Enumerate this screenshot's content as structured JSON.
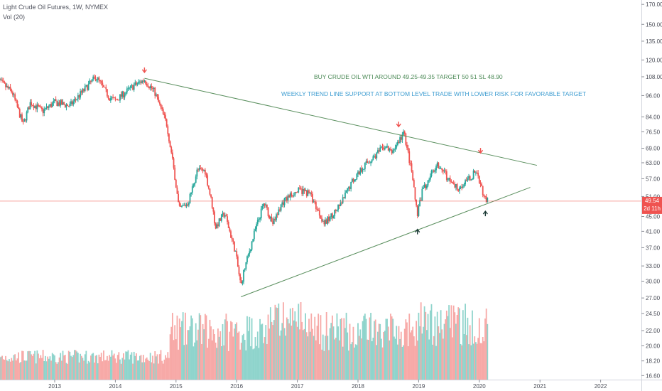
{
  "header": {
    "symbol_line": "Light Crude Oil Futures, 1W, NYMEX",
    "volume_line": "Vol (20)"
  },
  "annotations": {
    "line1": "BUY CRUDE OIL WTI AROUND 49.25-49.35 TARGET 50 51 SL 48.90",
    "line2": "WEEKLY TREND LINE SUPPORT AT BOTTOM LEVEL TRADE WITH LOWER RISK FOR FAVORABLE TARGET"
  },
  "colors": {
    "up": "#26a69a",
    "down": "#ef5350",
    "vol_up": "#8fd4cc",
    "vol_down": "#f7a9a7",
    "trendline": "#5a8f5e",
    "line1_text": "#4c8a57",
    "line2_text": "#3e9dd1",
    "price_line": "#ef5350",
    "arrow_down": "#ef5350",
    "arrow_up": "#1c3b36"
  },
  "price_tag": {
    "value": "49.54",
    "countdown": "2d 11h"
  },
  "chart_data": {
    "type": "candlestick",
    "title": "Light Crude Oil Futures, 1W, NYMEX",
    "y_scale": "log",
    "y_ticks": [
      "170.00",
      "150.00",
      "135.00",
      "120.00",
      "108.00",
      "96.00",
      "84.00",
      "76.50",
      "69.00",
      "63.00",
      "57.00",
      "51.00",
      "45.00",
      "41.00",
      "37.00",
      "33.00",
      "30.00",
      "27.00",
      "24.50",
      "22.00",
      "20.00",
      "18.20",
      "16.60"
    ],
    "x_ticks": [
      "2013",
      "2014",
      "2015",
      "2016",
      "2017",
      "2018",
      "2019",
      "2020",
      "2021",
      "2022"
    ],
    "last_price": 49.54,
    "anchors": [
      [
        2012.0,
        108
      ],
      [
        2012.3,
        98
      ],
      [
        2012.48,
        80
      ],
      [
        2012.6,
        92
      ],
      [
        2012.8,
        87
      ],
      [
        2013.0,
        92
      ],
      [
        2013.25,
        90
      ],
      [
        2013.35,
        94
      ],
      [
        2013.5,
        100
      ],
      [
        2013.68,
        108
      ],
      [
        2013.9,
        95
      ],
      [
        2014.0,
        93
      ],
      [
        2014.3,
        102
      ],
      [
        2014.48,
        106
      ],
      [
        2014.65,
        98
      ],
      [
        2014.85,
        80
      ],
      [
        2014.98,
        58
      ],
      [
        2015.05,
        47
      ],
      [
        2015.2,
        49
      ],
      [
        2015.35,
        60
      ],
      [
        2015.48,
        60
      ],
      [
        2015.6,
        48
      ],
      [
        2015.65,
        42
      ],
      [
        2015.8,
        46
      ],
      [
        2015.98,
        36
      ],
      [
        2016.07,
        29
      ],
      [
        2016.12,
        32
      ],
      [
        2016.3,
        41
      ],
      [
        2016.45,
        49
      ],
      [
        2016.6,
        43
      ],
      [
        2016.75,
        49
      ],
      [
        2016.92,
        52
      ],
      [
        2017.05,
        53
      ],
      [
        2017.2,
        52
      ],
      [
        2017.45,
        43
      ],
      [
        2017.7,
        48
      ],
      [
        2017.9,
        56
      ],
      [
        2018.1,
        62
      ],
      [
        2018.2,
        64
      ],
      [
        2018.45,
        70
      ],
      [
        2018.55,
        67
      ],
      [
        2018.76,
        76
      ],
      [
        2018.88,
        60
      ],
      [
        2018.98,
        45
      ],
      [
        2019.05,
        52
      ],
      [
        2019.3,
        63
      ],
      [
        2019.4,
        60
      ],
      [
        2019.55,
        55
      ],
      [
        2019.65,
        54
      ],
      [
        2019.8,
        56
      ],
      [
        2019.95,
        60
      ],
      [
        2020.02,
        55
      ],
      [
        2020.1,
        50
      ],
      [
        2020.14,
        49.54
      ]
    ],
    "trendlines": [
      {
        "from": [
          2014.48,
          107
        ],
        "to": [
          2020.95,
          62
        ]
      },
      {
        "from": [
          2016.07,
          27.2
        ],
        "to": [
          2020.84,
          54
        ]
      }
    ],
    "markers": [
      {
        "type": "arrow-down",
        "x": 2014.48,
        "y": 111
      },
      {
        "type": "arrow-down",
        "x": 2018.67,
        "y": 79
      },
      {
        "type": "arrow-down",
        "x": 2020.02,
        "y": 67
      },
      {
        "type": "arrow-up",
        "x": 2018.98,
        "y": 41.5
      },
      {
        "type": "arrow-up",
        "x": 2020.1,
        "y": 46.5
      }
    ],
    "volume": {
      "label": "Vol (20)",
      "range_hint": "relative"
    }
  }
}
